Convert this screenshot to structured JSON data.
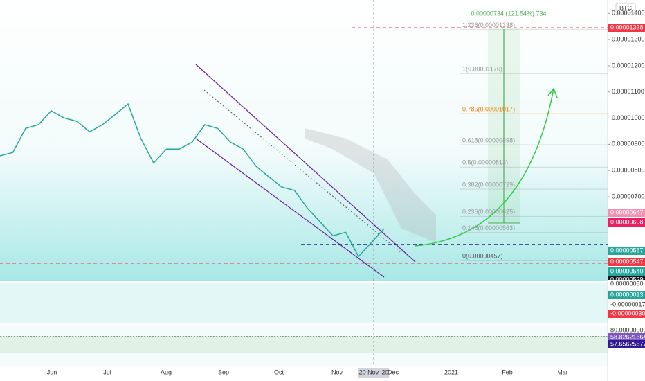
{
  "chart_data": {
    "type": "line",
    "symbol": "BTC",
    "measure_label": "0.00000734 (121.54%) 734",
    "ylim": [
      3.8e-06,
      1.451e-05
    ],
    "yticks": [
      {
        "value": 1.4e-05,
        "label": "0.00001400"
      },
      {
        "value": 1.3e-05,
        "label": "0.00001300"
      },
      {
        "value": 1.2e-05,
        "label": "0.00001200"
      },
      {
        "value": 1.1e-05,
        "label": "0.00001100"
      },
      {
        "value": 1e-05,
        "label": "0.00001000"
      },
      {
        "value": 9e-06,
        "label": "0.00000900"
      },
      {
        "value": 8e-06,
        "label": "0.00000800"
      },
      {
        "value": 7e-06,
        "label": "0.00000700"
      }
    ],
    "x_labels": [
      "Jun",
      "Jul",
      "Aug",
      "Sep",
      "Oct",
      "Nov",
      "20 Nov '20",
      "Dec",
      "2021",
      "Feb",
      "Mar"
    ],
    "series": [
      {
        "name": "BTC",
        "color": "#26a69a",
        "values": [
          8.56e-06,
          8.69e-06,
          9.61e-06,
          9.75e-06,
          1.028e-05,
          1.001e-05,
          9.88e-06,
          9.48e-06,
          9.75e-06,
          1.014e-05,
          1.054e-05,
          9.22e-06,
          8.29e-06,
          8.82e-06,
          8.82e-06,
          9.08e-06,
          9.75e-06,
          9.61e-06,
          9.08e-06,
          8.82e-06,
          8.16e-06,
          7.76e-06,
          7.37e-06,
          7.24e-06,
          6.57e-06,
          6.04e-06,
          5.51e-06,
          5.64e-06,
          4.72e-06,
          5.25e-06,
          5.78e-06
        ]
      }
    ],
    "fib_levels": [
      {
        "value": 1.338e-05,
        "label": "1.236(0.00001338)",
        "color": "#999999"
      },
      {
        "value": 1.17e-05,
        "label": "1(0.00001170)",
        "color": "#999999"
      },
      {
        "value": 1.017e-05,
        "label": "0.786(0.00001017)",
        "color": "#f57c00"
      },
      {
        "value": 8.98e-06,
        "label": "0.618(0.00000898)",
        "color": "#999999"
      },
      {
        "value": 8.13e-06,
        "label": "0.5(0.00000813)",
        "color": "#999999"
      },
      {
        "value": 7.29e-06,
        "label": "0.382(0.00000729)",
        "color": "#999999"
      },
      {
        "value": 6.25e-06,
        "label": "0.236(0.00000625)",
        "color": "#999999"
      },
      {
        "value": 5.63e-06,
        "label": "0.148(0.00000563)",
        "color": "#999999"
      },
      {
        "value": 4.57e-06,
        "label": "0(0.00000457)",
        "color": "#555555"
      }
    ],
    "price_tags": [
      {
        "label": "0.00001338",
        "color": "#f23645"
      },
      {
        "label": "0.00000647",
        "color": "#f48fb1"
      },
      {
        "label": "0.00000608",
        "color": "#e91e63"
      },
      {
        "label": "0.00000557",
        "color": "#26a69a"
      },
      {
        "label": "0.00000547",
        "color": "#f23645"
      },
      {
        "label": "0.00000540",
        "color": "#26a69a"
      },
      {
        "label": "0.00000529",
        "color": "#131722"
      }
    ],
    "macd_tags": [
      {
        "label": "0.00000050",
        "color": "#ffffff"
      },
      {
        "label": "0.00000013",
        "color": "#26a69a"
      },
      {
        "label": "-0.00000017",
        "color": "#ffffff"
      },
      {
        "label": "-0.00000030",
        "color": "#f23645"
      }
    ],
    "rsi_tags": [
      {
        "label": "80.00000000",
        "color": "#ffffff"
      },
      {
        "label": "58.82621664",
        "color": "#7e57c2"
      },
      {
        "label": "57.65625577",
        "color": "#311b92"
      }
    ]
  }
}
